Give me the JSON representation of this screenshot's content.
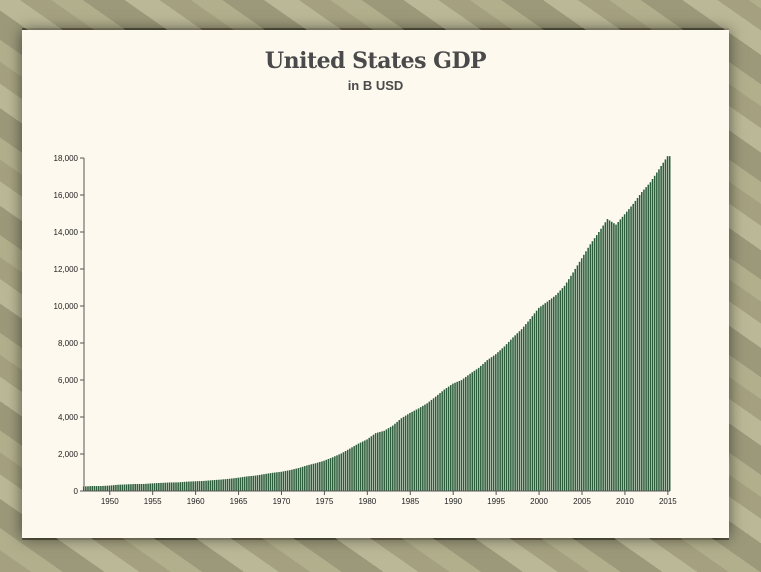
{
  "page": {
    "title": "United States GDP",
    "subtitle": "in B USD"
  },
  "colors": {
    "bar": "#2c5e3c",
    "axis": "#555555",
    "panel": "#fdf9ef"
  },
  "chart_data": {
    "type": "bar",
    "title": "United States GDP",
    "subtitle": "in B USD",
    "xlabel": "",
    "ylabel": "",
    "xlim": [
      1947,
      2015.25
    ],
    "ylim": [
      0,
      18000
    ],
    "y_ticks": [
      0,
      2000,
      4000,
      6000,
      8000,
      10000,
      12000,
      14000,
      16000,
      18000
    ],
    "y_tick_labels": [
      "0",
      "2,000",
      "4,000",
      "6,000",
      "8,000",
      "10,000",
      "12,000",
      "14,000",
      "16,000",
      "18,000"
    ],
    "x_ticks": [
      1950,
      1955,
      1960,
      1965,
      1970,
      1975,
      1980,
      1985,
      1990,
      1995,
      2000,
      2005,
      2010,
      2015
    ],
    "x_tick_labels": [
      "1950",
      "1955",
      "1960",
      "1965",
      "1970",
      "1975",
      "1980",
      "1985",
      "1990",
      "1995",
      "2000",
      "2005",
      "2010",
      "2015"
    ],
    "frequency": "quarterly",
    "grid": false,
    "legend": "none",
    "series": [
      {
        "x": [
          1947,
          1948,
          1949,
          1950,
          1951,
          1952,
          1953,
          1954,
          1955,
          1956,
          1957,
          1958,
          1959,
          1960,
          1961,
          1962,
          1963,
          1964,
          1965,
          1966,
          1967,
          1968,
          1969,
          1970,
          1971,
          1972,
          1973,
          1974,
          1975,
          1976,
          1977,
          1978,
          1979,
          1980,
          1981,
          1982,
          1983,
          1984,
          1985,
          1986,
          1987,
          1988,
          1989,
          1990,
          1991,
          1992,
          1993,
          1994,
          1995,
          1996,
          1997,
          1998,
          1999,
          2000,
          2001,
          2002,
          2003,
          2004,
          2005,
          2006,
          2007,
          2008,
          2009,
          2010,
          2011,
          2012,
          2013,
          2014,
          2015
        ],
        "values": [
          243,
          269,
          267,
          294,
          339,
          358,
          379,
          381,
          415,
          438,
          461,
          467,
          506,
          526,
          545,
          586,
          618,
          664,
          719,
          788,
          833,
          910,
          985,
          1038,
          1127,
          1238,
          1383,
          1500,
          1638,
          1825,
          2030,
          2294,
          2563,
          2789,
          3128,
          3255,
          3537,
          3933,
          4220,
          4463,
          4740,
          5104,
          5484,
          5803,
          5996,
          6338,
          6657,
          7072,
          7398,
          7817,
          8304,
          8748,
          9298,
          9899,
          10234,
          10590,
          11090,
          11813,
          12580,
          13336,
          14000,
          14700,
          14400,
          14960,
          15520,
          16160,
          16690,
          17390,
          18100
        ]
      }
    ]
  }
}
